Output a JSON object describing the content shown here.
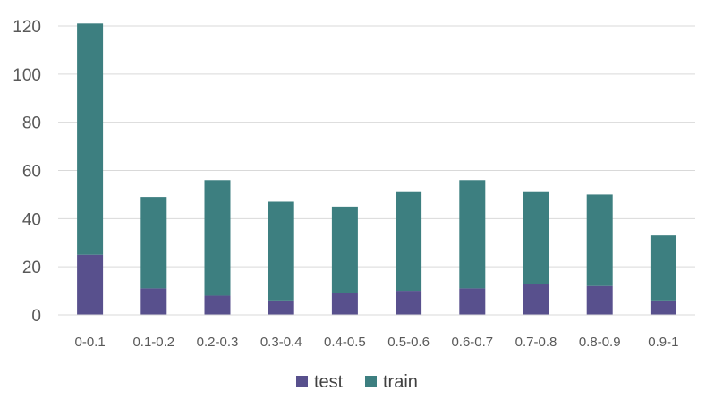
{
  "chart_data": {
    "type": "bar",
    "stacked": true,
    "title": "",
    "xlabel": "",
    "ylabel": "",
    "categories": [
      "0-0.1",
      "0.1-0.2",
      "0.2-0.3",
      "0.3-0.4",
      "0.4-0.5",
      "0.5-0.6",
      "0.6-0.7",
      "0.7-0.8",
      "0.8-0.9",
      "0.9-1"
    ],
    "series": [
      {
        "name": "test",
        "color": "#58508d",
        "values": [
          25,
          11,
          8,
          6,
          9,
          10,
          11,
          13,
          12,
          6
        ]
      },
      {
        "name": "train",
        "color": "#3d7f80",
        "values": [
          96,
          38,
          48,
          41,
          36,
          41,
          45,
          38,
          38,
          27
        ]
      }
    ],
    "ylim": [
      0,
      120
    ],
    "yticks": [
      0,
      20,
      40,
      60,
      80,
      100,
      120
    ],
    "grid": true,
    "legend": "bottom"
  }
}
